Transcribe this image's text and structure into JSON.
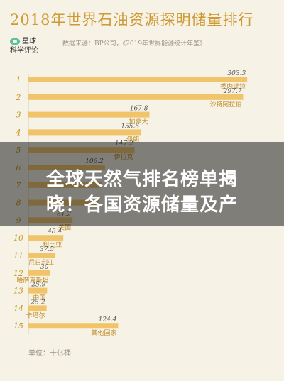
{
  "title": "2018年世界石油资源探明储量排行",
  "brand": {
    "line1": "星球",
    "line2": "科学评论"
  },
  "source": "数据来源：BP公司，《2019年世界能源统计年鉴》",
  "unit_label": "单位：十亿桶",
  "banner": {
    "line1": "全球天然气排名榜单揭",
    "line2": "晓！各国资源储量及产"
  },
  "colors": {
    "bar": "#f2c46a",
    "rank": "#c9961f",
    "text": "#c38f2a",
    "axis": "#d6cdb7",
    "title": "#cf9a34"
  },
  "chart_data": {
    "type": "bar",
    "orientation": "horizontal",
    "title": "2018年世界石油资源探明储量排行",
    "unit": "十亿桶",
    "ranks": [
      "1",
      "2",
      "3",
      "4",
      "5",
      "6",
      "7",
      "8",
      "9",
      "10",
      "11",
      "12",
      "13",
      "14",
      "15"
    ],
    "categories": [
      "委内瑞拉",
      "沙特阿拉伯",
      "加拿大",
      "伊朗",
      "伊拉克",
      "",
      "",
      "",
      "美国",
      "利比亚",
      "尼日利亚",
      "哈萨克斯坦",
      "中国",
      "卡塔尔",
      "其他国家"
    ],
    "value_labels": [
      "303.3",
      "297.7",
      "167.8",
      "155.6",
      "147.2",
      "106.2",
      "",
      "",
      "61.2",
      "48.4",
      "37.5",
      "30",
      "25.9",
      "25.2",
      "124.4"
    ],
    "values": [
      303.3,
      297.7,
      167.8,
      155.6,
      147.2,
      106.2,
      101.5,
      98.5,
      61.2,
      48.4,
      37.5,
      30,
      25.9,
      25.2,
      124.4
    ],
    "xlim": [
      0,
      310
    ]
  }
}
